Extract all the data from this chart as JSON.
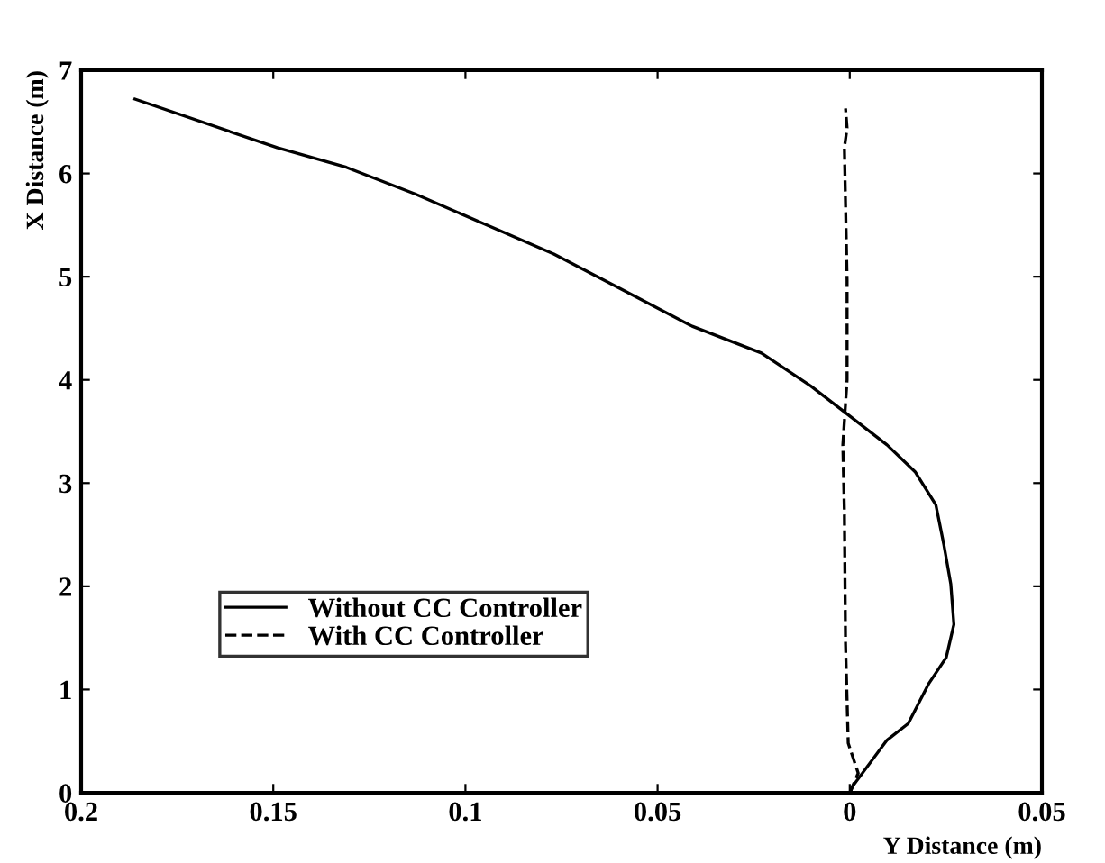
{
  "chart_data": {
    "type": "line",
    "xlabel": "Y Distance (m)",
    "ylabel": "X Distance (m)",
    "xlim": [
      0.2,
      -0.05
    ],
    "xticks": [
      0.2,
      0.15,
      0.1,
      0.05,
      0,
      {
        "value": -0.05,
        "label": "0.05"
      }
    ],
    "ylim": [
      0,
      7
    ],
    "yticks": [
      0,
      1,
      2,
      3,
      4,
      5,
      6,
      7
    ],
    "grid": false,
    "legend": "bottom left",
    "marker": "none",
    "series": [
      {
        "name": "Without CC Controller",
        "color": "#000000",
        "line_style": "solid",
        "x": [
          0.186,
          0.149,
          0.131,
          0.113,
          0.095,
          0.077,
          0.059,
          0.041,
          0.023,
          0.0101,
          0,
          -0.0097,
          -0.017,
          -0.0224,
          -0.0245,
          -0.0263,
          -0.0271,
          -0.0251,
          -0.0206,
          -0.0152,
          -0.0097,
          -0.0007,
          -0.0004
        ],
        "values": [
          6.72,
          6.25,
          6.06,
          5.8,
          5.51,
          5.22,
          4.87,
          4.52,
          4.26,
          3.94,
          3.65,
          3.37,
          3.11,
          2.79,
          2.4,
          2.02,
          1.63,
          1.31,
          1.06,
          0.67,
          0.51,
          0.06,
          0.03
        ]
      },
      {
        "name": "With CC Controller",
        "color": "#000000",
        "line_style": "dashed",
        "x": [
          0,
          -0.0022,
          0.0004,
          0.0011,
          0.0014,
          0.0018,
          0.0007,
          0.0007,
          0.0014,
          0.0007,
          0.0011
        ],
        "values": [
          0.0,
          0.19,
          0.48,
          1.44,
          2.72,
          3.37,
          4.0,
          4.97,
          6.25,
          6.44,
          6.63
        ]
      }
    ]
  }
}
